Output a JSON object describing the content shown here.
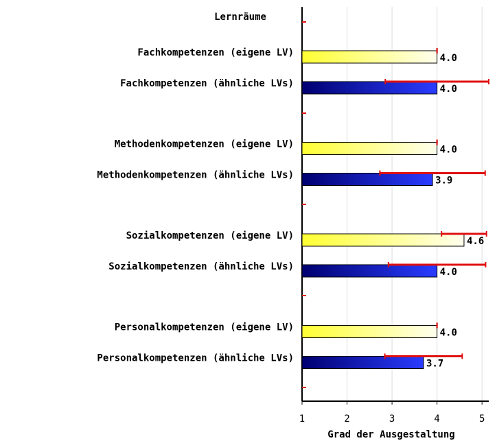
{
  "chart_data": {
    "type": "bar",
    "orientation": "horizontal",
    "title": "Lernräume",
    "categories": [
      "Fachkompetenzen (eigene LV)",
      "Fachkompetenzen (ähnliche LVs)",
      "Methodenkompetenzen (eigene LV)",
      "Methodenkompetenzen (ähnliche LVs)",
      "Sozialkompetenzen (eigene LV)",
      "Sozialkompetenzen (ähnliche LVs)",
      "Personalkompetenzen (eigene LV)",
      "Personalkompetenzen (ähnliche LVs)"
    ],
    "values": [
      4.0,
      4.0,
      4.0,
      3.9,
      4.6,
      4.0,
      4.0,
      3.7
    ],
    "value_labels": [
      "4.0",
      "4.0",
      "4.0",
      "3.9",
      "4.6",
      "4.0",
      "4.0",
      "3.7"
    ],
    "errors": [
      0,
      1.15,
      0,
      1.17,
      0.5,
      1.08,
      0,
      0.86
    ],
    "colors": [
      "yellow",
      "blue",
      "yellow",
      "blue",
      "yellow",
      "blue",
      "yellow",
      "blue"
    ],
    "error_color": "#e01010",
    "xlabel": "Grad der Ausgestaltung",
    "xlim": [
      1,
      5.15
    ],
    "xticks": [
      1,
      2,
      3,
      4,
      5
    ],
    "grid": true
  }
}
